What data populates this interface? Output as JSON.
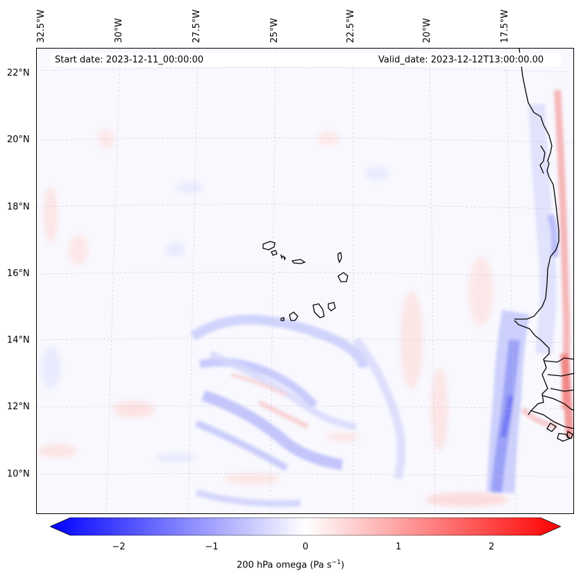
{
  "header": {
    "start_date": "Start date: 2023-12-11_00:00:00",
    "valid_date": "Valid_date: 2023-12-12T13:00:00.00"
  },
  "longitude_labels": [
    "32.5°W",
    "30°W",
    "27.5°W",
    "25°W",
    "22.5°W",
    "20°W",
    "17.5°W"
  ],
  "latitude_labels": [
    "22°N",
    "20°N",
    "18°N",
    "16°N",
    "14°N",
    "12°N",
    "10°N"
  ],
  "colorbar": {
    "ticks": [
      "−2",
      "−1",
      "0",
      "1",
      "2"
    ],
    "label": "200 hPa omega (Pa s",
    "label_sup": "−1",
    "label_close": ")",
    "range": [
      -2.6,
      2.6
    ],
    "negative_color": "#0000ff",
    "positive_color": "#ff0000",
    "zero_color": "#ffffff"
  },
  "chart_data": {
    "type": "heatmap",
    "variable": "200 hPa omega",
    "units": "Pa s^-1",
    "lon_range": [
      -33,
      -15
    ],
    "lat_range": [
      8.5,
      23
    ],
    "grid": true,
    "features": [
      "coastline West Africa",
      "Cape Verde islands"
    ]
  }
}
